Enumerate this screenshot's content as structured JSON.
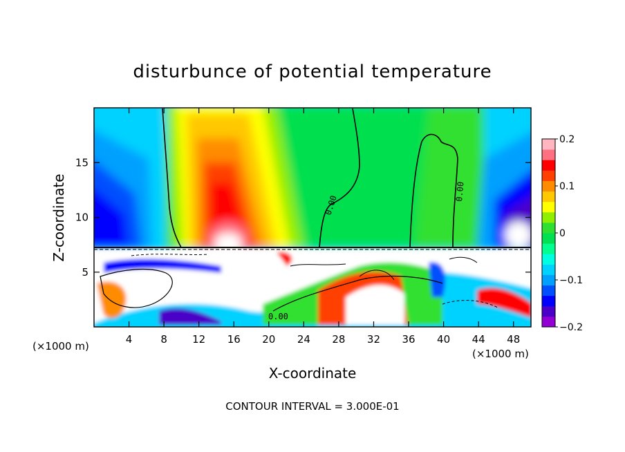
{
  "chart_data": {
    "type": "heatmap",
    "title": "disturbunce of potential temperature",
    "xlabel": "X-coordinate",
    "ylabel": "Z-coordinate",
    "x_unit_left": "(×1000 m)",
    "x_unit_right": "(×1000 m)",
    "xlim": [
      0,
      50
    ],
    "ylim": [
      0,
      20
    ],
    "xticks": [
      4,
      8,
      12,
      16,
      20,
      24,
      28,
      32,
      36,
      40,
      44,
      48
    ],
    "yticks": [
      5,
      10,
      15
    ],
    "colorbar": {
      "range": [
        -0.2,
        0.2
      ],
      "ticks": [
        0.2,
        0.1,
        0,
        -0.1,
        -0.2
      ],
      "tick_labels": [
        "0.2",
        "0.1",
        "0",
        "−0.1",
        "−0.2"
      ],
      "colors": [
        "#9400d3",
        "#4b00c8",
        "#0000ff",
        "#0050ff",
        "#00a0ff",
        "#00d2ff",
        "#00ffe0",
        "#00ff90",
        "#00e050",
        "#30e030",
        "#90ee00",
        "#ffff00",
        "#ffc800",
        "#ff8c00",
        "#ff4000",
        "#ff0000",
        "#ff7080",
        "#ffb6c1"
      ]
    },
    "contour_label": "0.00",
    "footer": "CONTOUR INTERVAL = 3.000E-01"
  }
}
